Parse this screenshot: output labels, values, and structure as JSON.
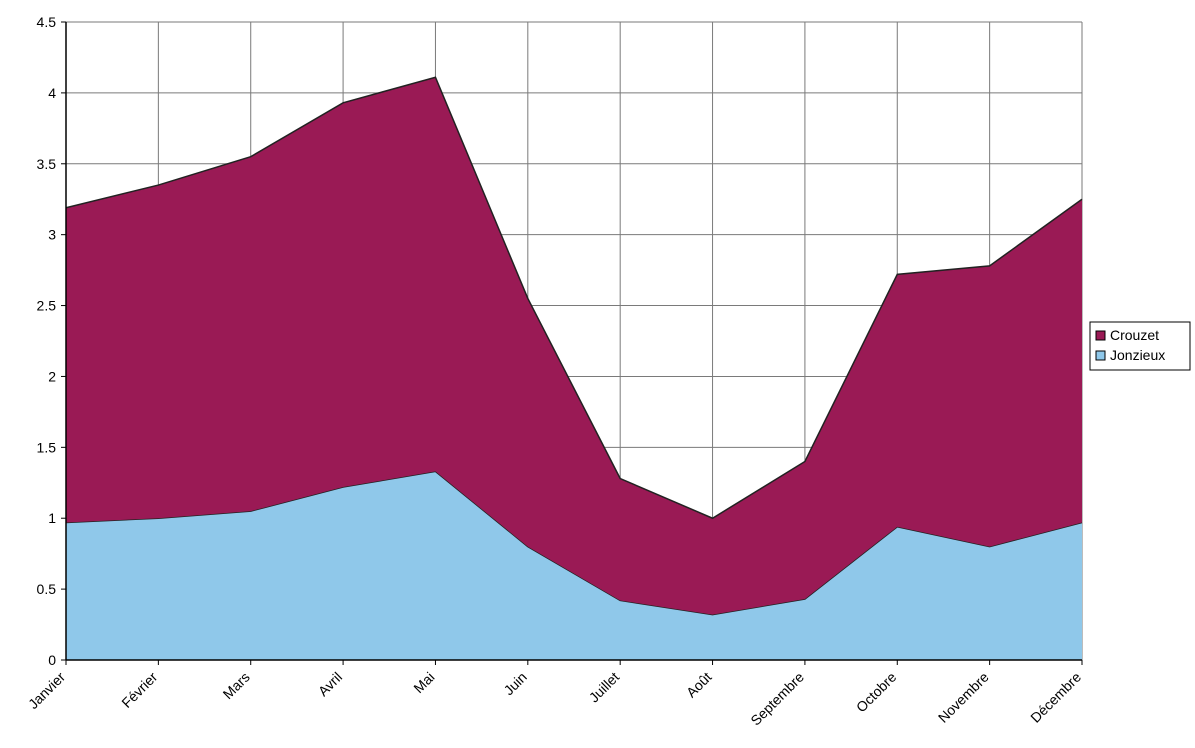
{
  "chart_data": {
    "type": "area",
    "stacked": true,
    "categories": [
      "Janvier",
      "Février",
      "Mars",
      "Avril",
      "Mai",
      "Juin",
      "Juillet",
      "Août",
      "Septembre",
      "Octobre",
      "Novembre",
      "Décembre"
    ],
    "series": [
      {
        "name": "Jonzieux",
        "color": "#8fc8ea",
        "values": [
          0.97,
          1.0,
          1.05,
          1.22,
          1.33,
          0.8,
          0.42,
          0.32,
          0.43,
          0.94,
          0.8,
          0.97
        ]
      },
      {
        "name": "Crouzet",
        "color": "#9a1a55",
        "values": [
          2.22,
          2.35,
          2.5,
          2.71,
          2.78,
          1.75,
          0.86,
          0.68,
          0.97,
          1.78,
          1.98,
          2.28
        ]
      }
    ],
    "ylim": [
      0,
      4.5
    ],
    "yticks": [
      0,
      0.5,
      1,
      1.5,
      2,
      2.5,
      3,
      3.5,
      4,
      4.5
    ],
    "ytick_labels": [
      "0",
      "0.5",
      "1",
      "1.5",
      "2",
      "2.5",
      "3",
      "3.5",
      "4",
      "4.5"
    ],
    "grid": true,
    "legend_position": "right",
    "legend": [
      {
        "name": "Crouzet",
        "color": "#9a1a55"
      },
      {
        "name": "Jonzieux",
        "color": "#8fc8ea"
      }
    ]
  }
}
